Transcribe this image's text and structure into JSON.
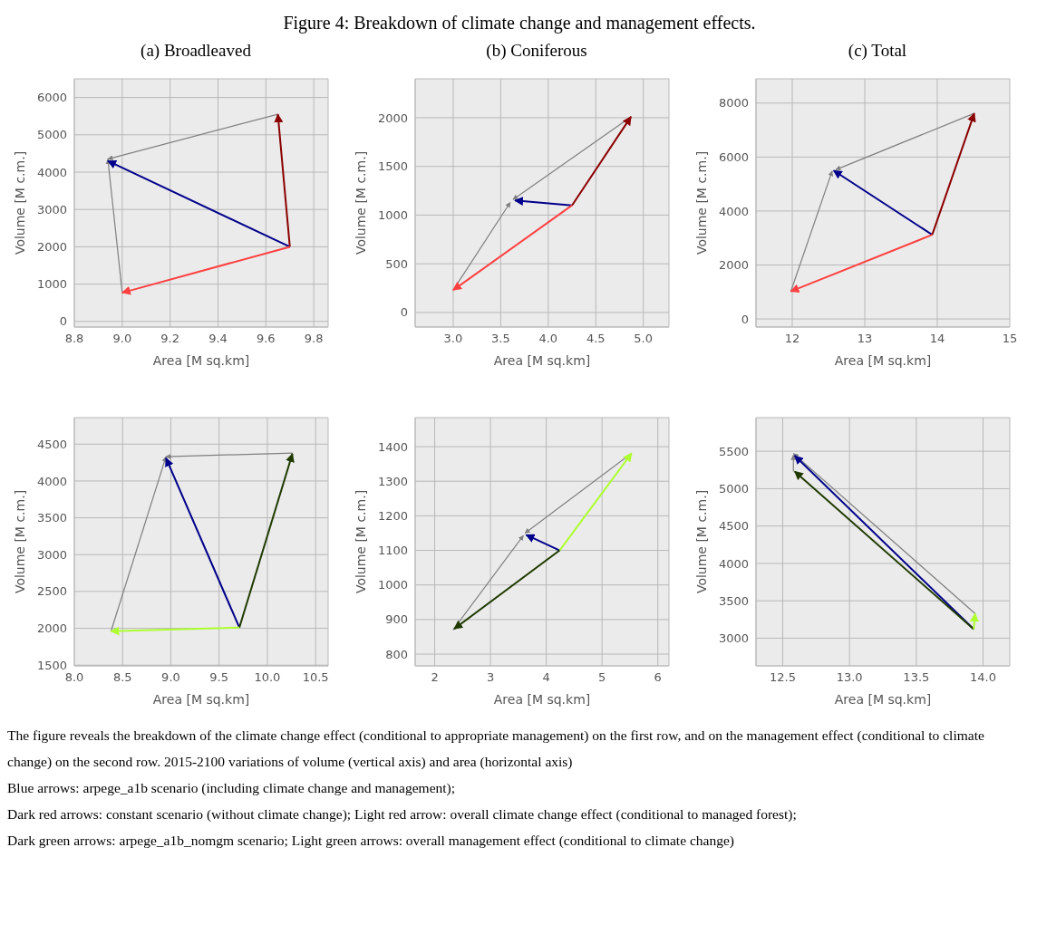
{
  "chart_data": [
    {
      "type": "line",
      "title": "(a) Broadleaved",
      "xlabel": "Area [M sq.km]",
      "ylabel": "Volume [M c.m.]",
      "annotations": [
        "Figure 4: Breakdown of climate change and management effects."
      ],
      "xlim": [
        8.8,
        9.86
      ],
      "ylim": [
        -150,
        6500
      ],
      "xticks": [
        8.8,
        {
          "value": 9,
          "label": "9.0"
        },
        9.2,
        9.4,
        9.6,
        9.8
      ],
      "yticks": [
        0,
        1000,
        2000,
        3000,
        4000,
        5000,
        6000
      ],
      "grid": true,
      "series": [
        {
          "color": "#808080",
          "x": [
            9.65,
            8.94
          ],
          "values": [
            5550,
            4350
          ]
        },
        {
          "color": "#808080",
          "x": [
            9.0,
            8.94
          ],
          "values": [
            770,
            4350
          ]
        },
        {
          "color": "#00008b",
          "x": [
            9.7,
            8.94
          ],
          "values": [
            2000,
            4300
          ]
        },
        {
          "color": "#8b0000",
          "x": [
            9.7,
            9.65
          ],
          "values": [
            2000,
            5550
          ]
        },
        {
          "color": "#ff4040",
          "x": [
            9.7,
            9.0
          ],
          "values": [
            2000,
            770
          ]
        }
      ]
    },
    {
      "type": "line",
      "title": "(b) Coniferous",
      "xlabel": "Area [M sq.km]",
      "ylabel": "Volume [M c.m.]",
      "xlim": [
        2.6,
        5.27
      ],
      "ylim": [
        -150,
        2400
      ],
      "xticks": [
        {
          "value": 3,
          "label": "3.0"
        },
        3.5,
        {
          "value": 4,
          "label": "4.0"
        },
        4.5,
        {
          "value": 5,
          "label": "5.0"
        }
      ],
      "yticks": [
        0,
        500,
        1000,
        1500,
        2000
      ],
      "grid": true,
      "series": [
        {
          "color": "#808080",
          "x": [
            4.87,
            3.63
          ],
          "values": [
            2010,
            1160
          ]
        },
        {
          "color": "#808080",
          "x": [
            3.0,
            3.6
          ],
          "values": [
            230,
            1130
          ]
        },
        {
          "color": "#00008b",
          "x": [
            4.25,
            3.65
          ],
          "values": [
            1100,
            1150
          ]
        },
        {
          "color": "#8b0000",
          "x": [
            4.25,
            4.87
          ],
          "values": [
            1100,
            2010
          ]
        },
        {
          "color": "#ff4040",
          "x": [
            4.25,
            3.0
          ],
          "values": [
            1100,
            230
          ]
        }
      ]
    },
    {
      "type": "line",
      "title": "(c) Total",
      "xlabel": "Area [M sq.km]",
      "ylabel": "Volume [M c.m.]",
      "xlim": [
        11.5,
        15
      ],
      "ylim": [
        -300,
        8900
      ],
      "xticks": [
        12,
        13,
        14,
        15
      ],
      "yticks": [
        0,
        2000,
        4000,
        6000,
        8000
      ],
      "grid": true,
      "series": [
        {
          "color": "#808080",
          "x": [
            14.51,
            12.6
          ],
          "values": [
            7620,
            5530
          ]
        },
        {
          "color": "#808080",
          "x": [
            11.98,
            12.55
          ],
          "values": [
            1020,
            5480
          ]
        },
        {
          "color": "#00008b",
          "x": [
            13.93,
            12.57
          ],
          "values": [
            3120,
            5500
          ]
        },
        {
          "color": "#8b0000",
          "x": [
            13.93,
            14.51
          ],
          "values": [
            3120,
            7620
          ]
        },
        {
          "color": "#ff4040",
          "x": [
            13.93,
            11.98
          ],
          "values": [
            3120,
            1020
          ]
        }
      ]
    },
    {
      "type": "line",
      "xlabel": "Area [M sq.km]",
      "ylabel": "Volume [M c.m.]",
      "xlim": [
        8.0,
        10.63
      ],
      "ylim": [
        1490,
        4860
      ],
      "xticks": [
        {
          "value": 8,
          "label": "8.0"
        },
        8.5,
        {
          "value": 9,
          "label": "9.0"
        },
        9.5,
        {
          "value": 10,
          "label": "10.0"
        },
        10.5
      ],
      "yticks": [
        1500,
        2000,
        2500,
        3000,
        3500,
        4000,
        4500
      ],
      "grid": true,
      "series": [
        {
          "color": "#808080",
          "x": [
            10.26,
            8.95
          ],
          "values": [
            4380,
            4330
          ]
        },
        {
          "color": "#808080",
          "x": [
            8.38,
            8.95
          ],
          "values": [
            1960,
            4330
          ]
        },
        {
          "color": "#00008b",
          "x": [
            9.71,
            8.95
          ],
          "values": [
            2010,
            4310
          ]
        },
        {
          "color": "#1f3a00",
          "x": [
            9.71,
            10.26
          ],
          "values": [
            2010,
            4370
          ]
        },
        {
          "color": "#adff2f",
          "x": [
            9.71,
            8.38
          ],
          "values": [
            2010,
            1960
          ]
        }
      ]
    },
    {
      "type": "line",
      "xlabel": "Area [M sq.km]",
      "ylabel": "Volume [M c.m.]",
      "xlim": [
        1.65,
        6.2
      ],
      "ylim": [
        766,
        1484
      ],
      "xticks": [
        2,
        3,
        4,
        5,
        6
      ],
      "yticks": [
        800,
        900,
        1000,
        1100,
        1200,
        1300,
        1400
      ],
      "grid": true,
      "series": [
        {
          "color": "#808080",
          "x": [
            5.53,
            3.62
          ],
          "values": [
            1381,
            1150
          ]
        },
        {
          "color": "#808080",
          "x": [
            2.33,
            3.59
          ],
          "values": [
            870,
            1143
          ]
        },
        {
          "color": "#00008b",
          "x": [
            4.24,
            3.64
          ],
          "values": [
            1100,
            1145
          ]
        },
        {
          "color": "#adff2f",
          "x": [
            4.24,
            5.53
          ],
          "values": [
            1100,
            1381
          ]
        },
        {
          "color": "#1f3a00",
          "x": [
            4.24,
            2.35
          ],
          "values": [
            1100,
            873
          ]
        }
      ]
    },
    {
      "type": "line",
      "xlabel": "Area [M sq.km]",
      "ylabel": "Volume [M c.m.]",
      "xlim": [
        12.3,
        14.2
      ],
      "ylim": [
        2630,
        5950
      ],
      "xticks": [
        12.5,
        {
          "value": 13,
          "label": "13.0"
        },
        13.5,
        {
          "value": 14,
          "label": "14.0"
        }
      ],
      "yticks": [
        3000,
        3500,
        4000,
        4500,
        5000,
        5500
      ],
      "grid": true,
      "annotations": [
        "The figure reveals the breakdown of the climate change effect (conditional to appropriate management) on the first row, and on the management effect (conditional to climate change) on the second row. 2015-2100 variations of volume (vertical axis) and area (horizontal axis)",
        "Blue arrows: arpege_a1b scenario (including climate change and management);",
        "Dark red arrows: constant scenario (without climate change); Light red arrow: overall climate change effect (conditional to managed forest);",
        "Dark green arrows: arpege_a1b_nomgm scenario; Light green arrows: overall management effect (conditional to climate change)"
      ],
      "series": [
        {
          "color": "#808080",
          "x": [
            13.94,
            12.58
          ],
          "values": [
            3330,
            5470
          ]
        },
        {
          "color": "#808080",
          "x": [
            12.58,
            12.58
          ],
          "values": [
            5230,
            5450
          ]
        },
        {
          "color": "#00008b",
          "x": [
            13.93,
            12.59
          ],
          "values": [
            3120,
            5440
          ]
        },
        {
          "color": "#1f3a00",
          "x": [
            13.93,
            12.59
          ],
          "values": [
            3120,
            5230
          ]
        },
        {
          "color": "#adff2f",
          "x": [
            13.93,
            13.94
          ],
          "values": [
            3120,
            3330
          ]
        }
      ]
    }
  ]
}
